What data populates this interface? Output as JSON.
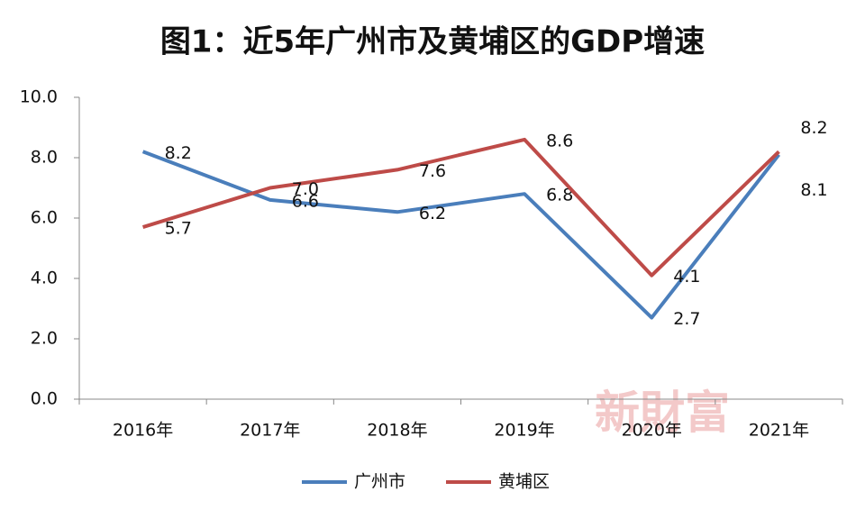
{
  "chart_data": {
    "type": "line",
    "title": "图1：近5年广州市及黄埔区的GDP增速",
    "categories": [
      "2016年",
      "2017年",
      "2018年",
      "2019年",
      "2020年",
      "2021年"
    ],
    "series": [
      {
        "name": "广州市",
        "color": "#4a7ebb",
        "values": [
          8.2,
          6.6,
          6.2,
          6.8,
          2.7,
          8.1
        ],
        "value_labels": [
          "8.2",
          "6.6",
          "6.2",
          "6.8",
          "2.7",
          "8.1"
        ]
      },
      {
        "name": "黄埔区",
        "color": "#be4b48",
        "values": [
          5.7,
          7.0,
          7.6,
          8.6,
          4.1,
          8.2
        ],
        "value_labels": [
          "5.7",
          "7.0",
          "7.6",
          "8.6",
          "4.1",
          "8.2"
        ]
      }
    ],
    "ylim": [
      0,
      10
    ],
    "yticks": [
      {
        "value": 0,
        "label": "0.0"
      },
      {
        "value": 2,
        "label": "2.0"
      },
      {
        "value": 4,
        "label": "4.0"
      },
      {
        "value": 6,
        "label": "6.0"
      },
      {
        "value": 8,
        "label": "8.0"
      },
      {
        "value": 10,
        "label": "10.0"
      }
    ],
    "legend": "bottom",
    "watermark": "新財富"
  }
}
